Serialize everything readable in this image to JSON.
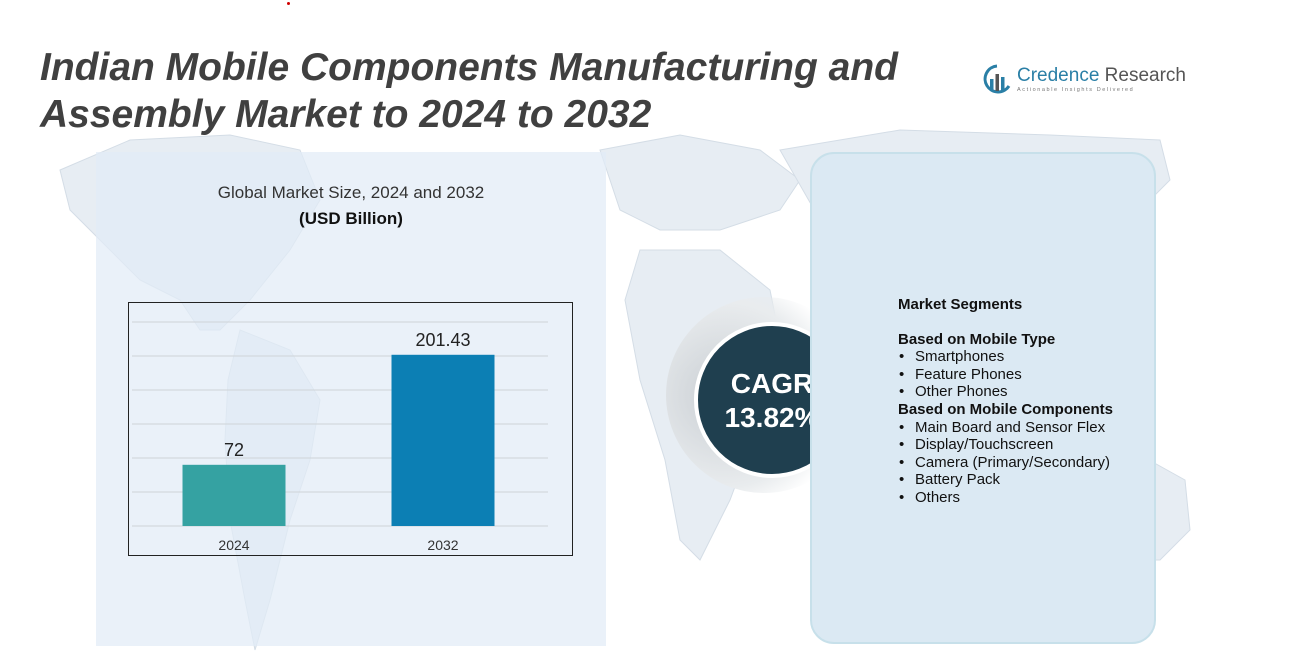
{
  "title": "Indian Mobile Components Manufacturing and Assembly Market to 2024 to 2032",
  "logo": {
    "name_part1": "Credence",
    "name_part2": " Research",
    "tagline": "Actionable Insights Delivered"
  },
  "chart_data": {
    "type": "bar",
    "title": "Global Market Size,  2024 and 2032",
    "subtitle": "(USD Billion)",
    "categories": [
      "2024",
      "2032"
    ],
    "values": [
      72,
      201.43
    ],
    "value_labels": [
      "72",
      "201.43"
    ],
    "ylim": [
      0,
      240
    ],
    "grid": true,
    "colors": [
      "#35a2a2",
      "#0c7fb4"
    ],
    "xlabel": "",
    "ylabel": ""
  },
  "cagr": {
    "label": "CAGR",
    "value": "13.82%"
  },
  "segments": {
    "heading": "Market Segments",
    "groups": [
      {
        "title": "Based on Mobile Type",
        "items": [
          "Smartphones",
          "Feature Phones",
          "Other Phones"
        ]
      },
      {
        "title": "Based on Mobile Components",
        "items": [
          "Main Board and Sensor Flex",
          "Display/Touchscreen",
          "Camera (Primary/Secondary)",
          "Battery Pack",
          "Others"
        ]
      }
    ]
  },
  "colors": {
    "title": "#404040",
    "cagr_circle": "#1f3f4f",
    "panel_bg": "#dbe9f3",
    "brand": "#2a7fa6"
  }
}
